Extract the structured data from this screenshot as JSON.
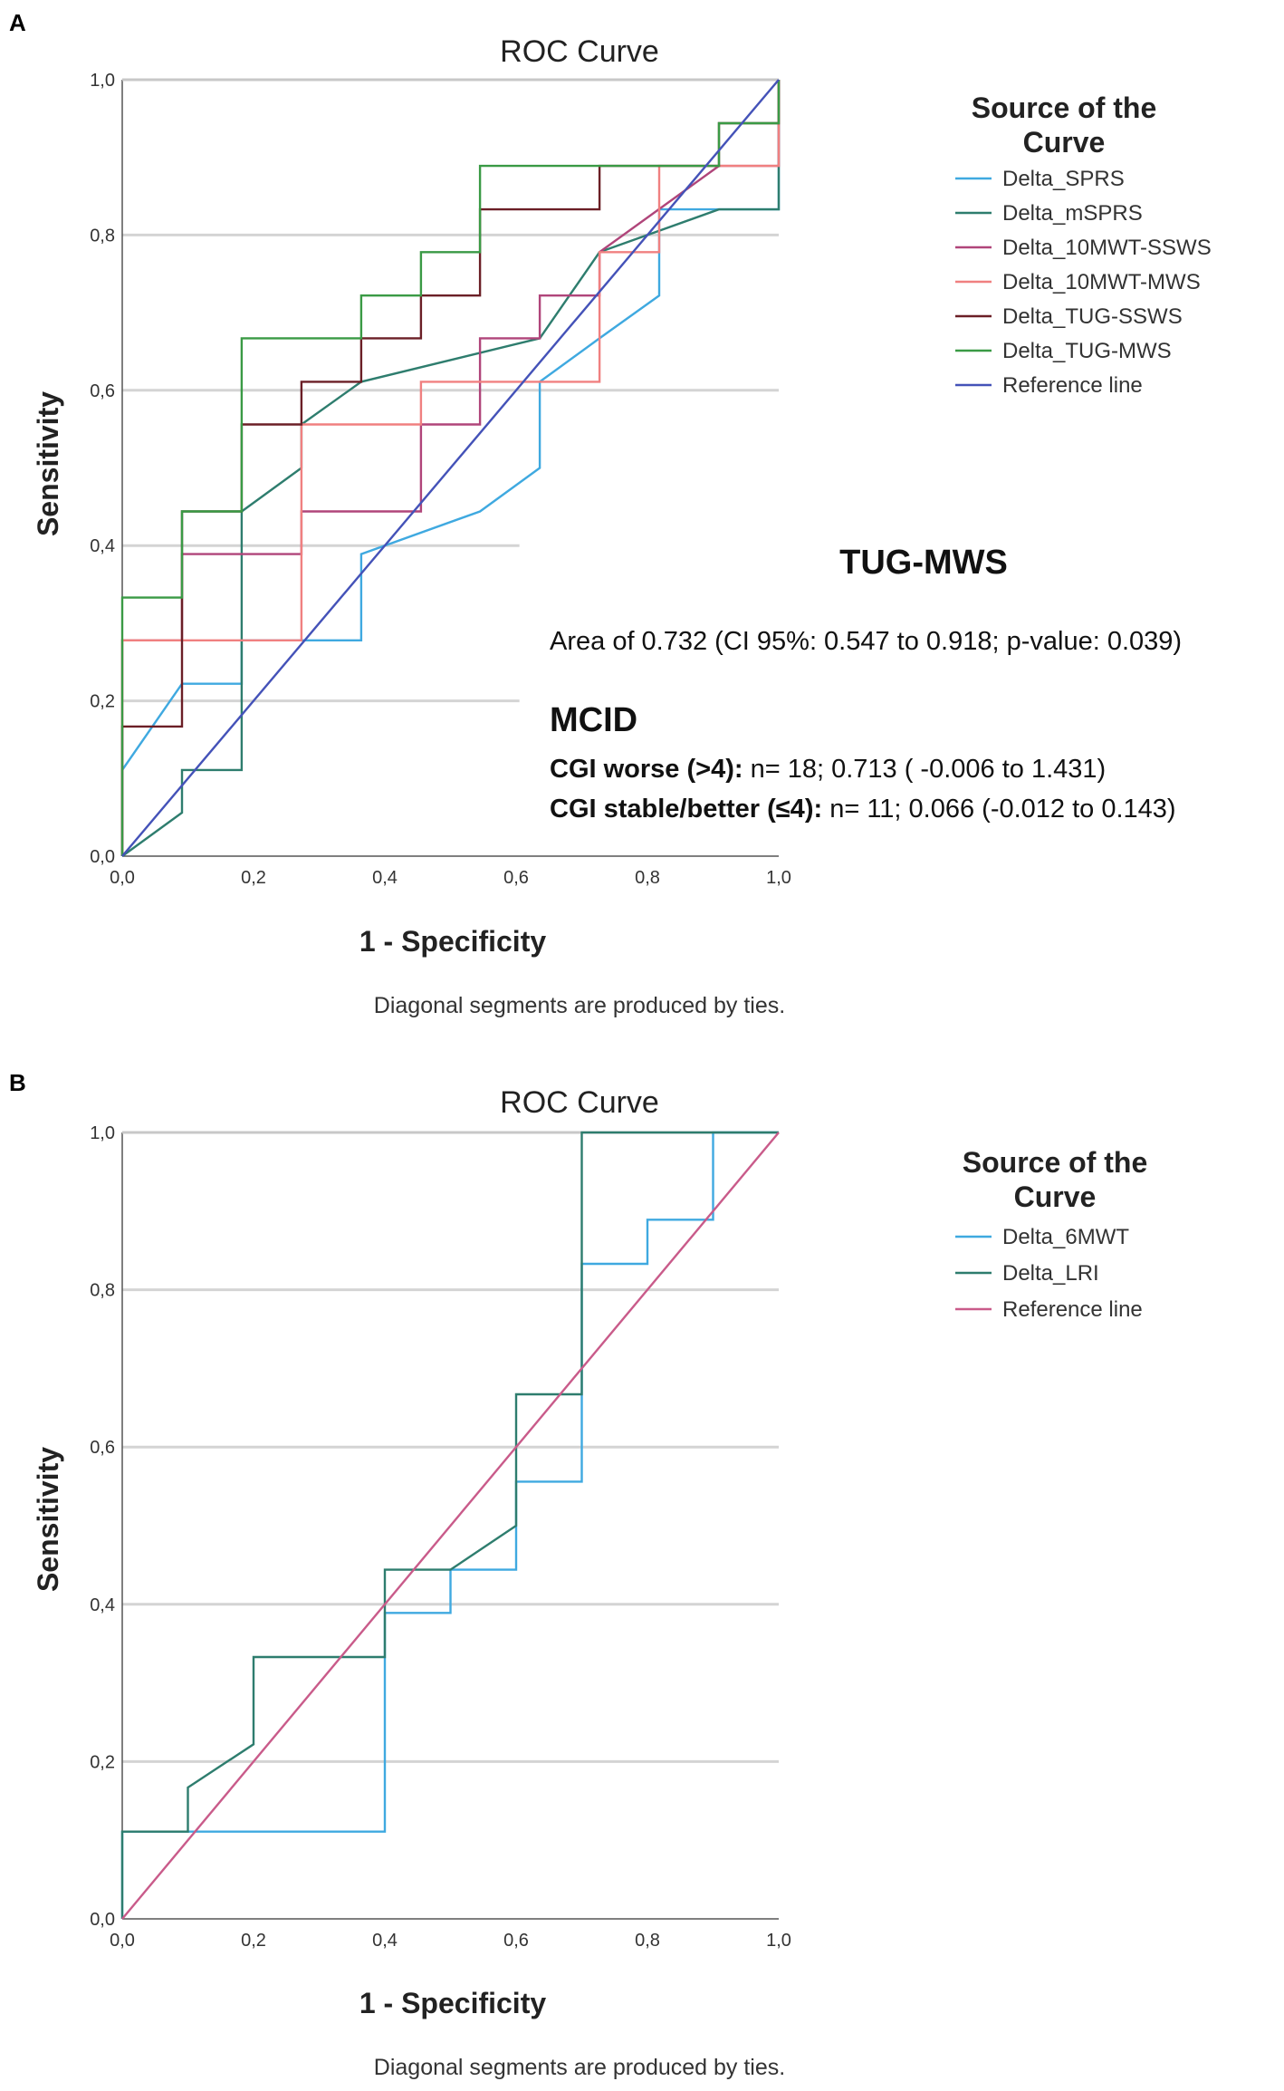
{
  "chart_data": [
    {
      "panel": "A",
      "type": "line",
      "title": "ROC Curve",
      "xlabel": "1 - Specificity",
      "ylabel": "Sensitivity",
      "xlim": [
        0,
        1
      ],
      "ylim": [
        0,
        1
      ],
      "ticks": [
        "0,0",
        "0,2",
        "0,4",
        "0,6",
        "0,8",
        "1,0"
      ],
      "grid": true,
      "footnote": "Diagonal segments are produced by ties.",
      "legend_title": [
        "Source of the",
        "Curve"
      ],
      "legend_position": "top-right",
      "series": [
        {
          "name": "Delta_SPRS",
          "color": "#3fa9e0",
          "points": [
            [
              0,
              0
            ],
            [
              0,
              0.111
            ],
            [
              0.091,
              0.222
            ],
            [
              0.182,
              0.222
            ],
            [
              0.182,
              0.278
            ],
            [
              0.273,
              0.278
            ],
            [
              0.364,
              0.278
            ],
            [
              0.364,
              0.389
            ],
            [
              0.545,
              0.444
            ],
            [
              0.636,
              0.5
            ],
            [
              0.636,
              0.611
            ],
            [
              0.727,
              0.667
            ],
            [
              0.818,
              0.722
            ],
            [
              0.818,
              0.833
            ],
            [
              0.909,
              0.833
            ],
            [
              1,
              0.833
            ],
            [
              1,
              1
            ]
          ]
        },
        {
          "name": "Delta_mSPRS",
          "color": "#2e7d6e",
          "points": [
            [
              0,
              0
            ],
            [
              0.091,
              0.056
            ],
            [
              0.091,
              0.111
            ],
            [
              0.182,
              0.111
            ],
            [
              0.182,
              0.444
            ],
            [
              0.273,
              0.5
            ],
            [
              0.273,
              0.556
            ],
            [
              0.364,
              0.611
            ],
            [
              0.636,
              0.667
            ],
            [
              0.727,
              0.778
            ],
            [
              0.909,
              0.833
            ],
            [
              1,
              0.833
            ],
            [
              1,
              1
            ]
          ]
        },
        {
          "name": "Delta_10MWT-SSWS",
          "color": "#b0457a",
          "points": [
            [
              0,
              0
            ],
            [
              0,
              0.278
            ],
            [
              0.091,
              0.278
            ],
            [
              0.091,
              0.389
            ],
            [
              0.273,
              0.389
            ],
            [
              0.273,
              0.444
            ],
            [
              0.455,
              0.444
            ],
            [
              0.455,
              0.556
            ],
            [
              0.545,
              0.556
            ],
            [
              0.545,
              0.667
            ],
            [
              0.636,
              0.667
            ],
            [
              0.636,
              0.722
            ],
            [
              0.727,
              0.722
            ],
            [
              0.727,
              0.778
            ],
            [
              0.909,
              0.889
            ],
            [
              1,
              0.889
            ],
            [
              1,
              1
            ]
          ]
        },
        {
          "name": "Delta_10MWT-MWS",
          "color": "#f08080",
          "points": [
            [
              0,
              0
            ],
            [
              0,
              0.278
            ],
            [
              0.273,
              0.278
            ],
            [
              0.273,
              0.556
            ],
            [
              0.455,
              0.556
            ],
            [
              0.455,
              0.611
            ],
            [
              0.727,
              0.611
            ],
            [
              0.727,
              0.778
            ],
            [
              0.818,
              0.778
            ],
            [
              0.818,
              0.889
            ],
            [
              1,
              0.889
            ],
            [
              1,
              1
            ]
          ]
        },
        {
          "name": "Delta_TUG-SSWS",
          "color": "#6b1f26",
          "points": [
            [
              0,
              0
            ],
            [
              0,
              0.167
            ],
            [
              0.091,
              0.167
            ],
            [
              0.091,
              0.444
            ],
            [
              0.182,
              0.444
            ],
            [
              0.182,
              0.556
            ],
            [
              0.273,
              0.556
            ],
            [
              0.273,
              0.611
            ],
            [
              0.364,
              0.611
            ],
            [
              0.364,
              0.667
            ],
            [
              0.455,
              0.667
            ],
            [
              0.455,
              0.722
            ],
            [
              0.545,
              0.722
            ],
            [
              0.545,
              0.833
            ],
            [
              0.727,
              0.833
            ],
            [
              0.727,
              0.889
            ],
            [
              0.909,
              0.889
            ],
            [
              0.909,
              0.944
            ],
            [
              1,
              0.944
            ],
            [
              1,
              1
            ]
          ]
        },
        {
          "name": "Delta_TUG-MWS",
          "color": "#3a9a45",
          "points": [
            [
              0,
              0
            ],
            [
              0,
              0.333
            ],
            [
              0.091,
              0.333
            ],
            [
              0.091,
              0.444
            ],
            [
              0.182,
              0.444
            ],
            [
              0.182,
              0.667
            ],
            [
              0.364,
              0.667
            ],
            [
              0.364,
              0.722
            ],
            [
              0.455,
              0.722
            ],
            [
              0.455,
              0.778
            ],
            [
              0.545,
              0.778
            ],
            [
              0.545,
              0.889
            ],
            [
              0.909,
              0.889
            ],
            [
              0.909,
              0.944
            ],
            [
              1,
              0.944
            ],
            [
              1,
              1
            ]
          ]
        },
        {
          "name": "Reference line",
          "color": "#4452b8",
          "points": [
            [
              0,
              0
            ],
            [
              1,
              1
            ]
          ]
        }
      ],
      "annotation": {
        "title": "TUG-MWS",
        "area_text": "Area of 0.732 (CI 95%: 0.547 to 0.918; p-value: 0.039)",
        "mcid_title": "MCID",
        "worse_label": "CGI worse (>4):",
        "worse_value": " n= 18; 0.713 ( -0.006 to 1.431)",
        "stable_label": "CGI stable/better (≤4):",
        "stable_value": " n= 11; 0.066 (-0.012 to 0.143)"
      }
    },
    {
      "panel": "B",
      "type": "line",
      "title": "ROC Curve",
      "xlabel": "1 - Specificity",
      "ylabel": "Sensitivity",
      "xlim": [
        0,
        1
      ],
      "ylim": [
        0,
        1
      ],
      "ticks": [
        "0,0",
        "0,2",
        "0,4",
        "0,6",
        "0,8",
        "1,0"
      ],
      "grid": true,
      "footnote": "Diagonal segments are produced by ties.",
      "legend_title": [
        "Source of the",
        "Curve"
      ],
      "legend_position": "top-right",
      "series": [
        {
          "name": "Delta_6MWT",
          "color": "#3fa9e0",
          "points": [
            [
              0,
              0
            ],
            [
              0,
              0.111
            ],
            [
              0.4,
              0.111
            ],
            [
              0.4,
              0.389
            ],
            [
              0.5,
              0.389
            ],
            [
              0.5,
              0.444
            ],
            [
              0.6,
              0.444
            ],
            [
              0.6,
              0.556
            ],
            [
              0.7,
              0.556
            ],
            [
              0.7,
              0.833
            ],
            [
              0.8,
              0.833
            ],
            [
              0.8,
              0.889
            ],
            [
              0.9,
              0.889
            ],
            [
              0.9,
              1
            ],
            [
              1,
              1
            ]
          ]
        },
        {
          "name": "Delta_LRI",
          "color": "#2e7d6e",
          "points": [
            [
              0,
              0
            ],
            [
              0,
              0.111
            ],
            [
              0.1,
              0.111
            ],
            [
              0.1,
              0.167
            ],
            [
              0.2,
              0.222
            ],
            [
              0.2,
              0.333
            ],
            [
              0.4,
              0.333
            ],
            [
              0.4,
              0.444
            ],
            [
              0.5,
              0.444
            ],
            [
              0.6,
              0.5
            ],
            [
              0.6,
              0.667
            ],
            [
              0.7,
              0.667
            ],
            [
              0.7,
              1
            ],
            [
              1,
              1
            ]
          ]
        },
        {
          "name": "Reference line",
          "color": "#c95b8a",
          "points": [
            [
              0,
              0
            ],
            [
              1,
              1
            ]
          ]
        }
      ]
    }
  ]
}
